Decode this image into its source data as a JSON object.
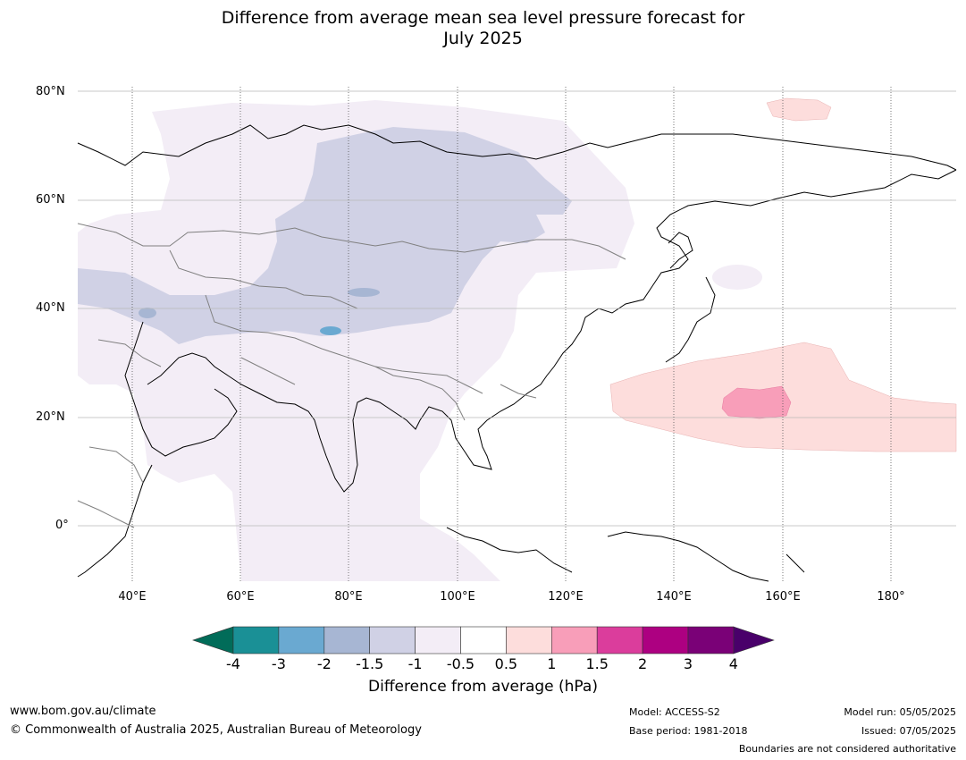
{
  "title": {
    "line1": "Difference from average mean sea level pressure forecast for",
    "line2": "July 2025"
  },
  "map": {
    "lat_labels": [
      "80°N",
      "60°N",
      "40°N",
      "20°N",
      "0°"
    ],
    "lon_labels": [
      "40°E",
      "60°E",
      "80°E",
      "100°E",
      "120°E",
      "140°E",
      "160°E",
      "180°"
    ],
    "colors": {
      "land": "#ffffff",
      "coast": "#000000",
      "border": "#808080",
      "grid": "#b0b0b0"
    }
  },
  "colorbar": {
    "label": "Difference from average (hPa)",
    "ticks": [
      "-4",
      "-3",
      "-2",
      "-1.5",
      "-1",
      "-0.5",
      "0.5",
      "1",
      "1.5",
      "2",
      "3",
      "4"
    ],
    "colors": [
      "#1a9096",
      "#6aa9d1",
      "#a7b6d3",
      "#d0d1e5",
      "#f3edf6",
      "#ffffff",
      "#fddddc",
      "#f89eb9",
      "#db3d9c",
      "#ad0081",
      "#7a0177"
    ],
    "extend_low_color": "#016c59",
    "extend_high_color": "#49006a"
  },
  "footer": {
    "website": "www.bom.gov.au/climate",
    "copyright": "© Commonwealth of Australia 2025, Australian Bureau of Meteorology",
    "model": "Model: ACCESS-S2",
    "base_period": "Base period: 1981-2018",
    "model_run": "Model run: 05/05/2025",
    "issued": "Issued: 07/05/2025",
    "disclaimer": "Boundaries are not considered authoritative"
  }
}
